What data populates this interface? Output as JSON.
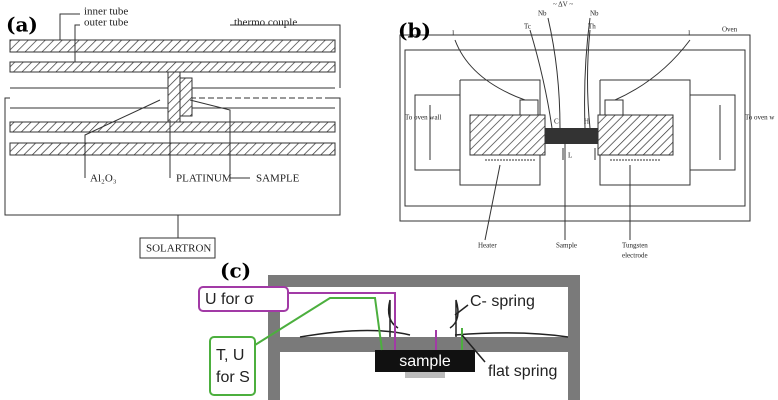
{
  "panel_a": {
    "label": "(a)",
    "inner_tube": "inner tube",
    "outer_tube": "outer tube",
    "thermo_couple": "thermo couple",
    "al2o3": "Al₂O₃",
    "platinum": "PLATINUM",
    "sample": "SAMPLE",
    "solartron": "SOLARTRON"
  },
  "panel_b": {
    "label": "(b)",
    "delta_v": "~ ΔV ~",
    "nb_left": "Nb",
    "nb_right": "Nb",
    "tc": "Tc",
    "th": "Th",
    "i_left": "I",
    "i_right": "I",
    "oven": "Oven",
    "to_oven_wall_left": "To oven wall",
    "to_oven_wall_right": "To oven w",
    "c": "C",
    "h": "H",
    "l": "L",
    "heater": "Heater",
    "sample": "Sample",
    "tungsten": "Tungsten",
    "electrode": "electrode"
  },
  "panel_c": {
    "label": "(c)",
    "u_for_sigma": "U for σ",
    "t_u_for_s": [
      "T, U",
      "for S"
    ],
    "c_spring": "C- spring",
    "sample": "sample",
    "flat_spring": "flat spring"
  }
}
